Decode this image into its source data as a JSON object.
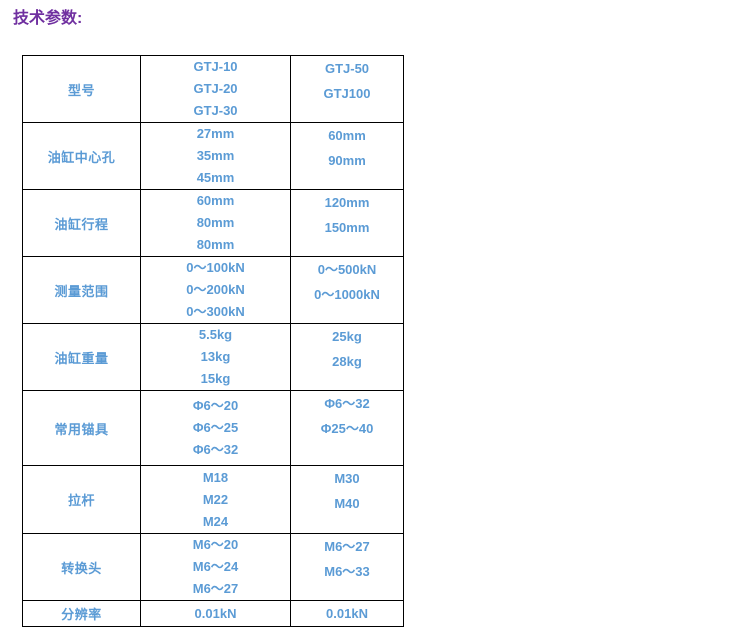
{
  "page": {
    "title": "技术参数:"
  },
  "colors": {
    "title_purple": "#7030A0",
    "value_blue": "#5B9BD5",
    "border": "#000000",
    "background": "#FFFFFF"
  },
  "table": {
    "rows": [
      {
        "label": "型号",
        "col2": [
          "GTJ-10",
          "GTJ-20",
          "GTJ-30"
        ],
        "col3": [
          "GTJ-50",
          "GTJ100"
        ]
      },
      {
        "label": "油缸中心孔",
        "col2": [
          "27mm",
          "35mm",
          "45mm"
        ],
        "col3": [
          "60mm",
          "90mm"
        ]
      },
      {
        "label": "油缸行程",
        "col2": [
          "60mm",
          "80mm",
          "80mm"
        ],
        "col3": [
          "120mm",
          "150mm"
        ]
      },
      {
        "label": "测量范围",
        "col2": [
          "0～100kN",
          "0～200kN",
          "0～300kN"
        ],
        "col3": [
          "0～500kN",
          "0～1000kN"
        ]
      },
      {
        "label": "油缸重量",
        "col2": [
          "5.5kg",
          "13kg",
          "15kg"
        ],
        "col3": [
          "25kg",
          "28kg"
        ]
      },
      {
        "label": "常用锚具",
        "col2": [
          "Φ6～20",
          "Φ6～25",
          "Φ6～32"
        ],
        "col3": [
          "Φ6～32",
          "Φ25～40"
        ]
      },
      {
        "label": "拉杆",
        "col2": [
          "M18",
          "M22",
          "M24"
        ],
        "col3": [
          "M30",
          "M40"
        ]
      },
      {
        "label": "转换头",
        "col2": [
          "M6～20",
          "M6～24",
          "M6～27"
        ],
        "col3": [
          "M6～27",
          "M6～33"
        ]
      },
      {
        "label": "分辨率",
        "col2": [
          "0.01kN"
        ],
        "col3": [
          "0.01kN"
        ]
      }
    ]
  }
}
